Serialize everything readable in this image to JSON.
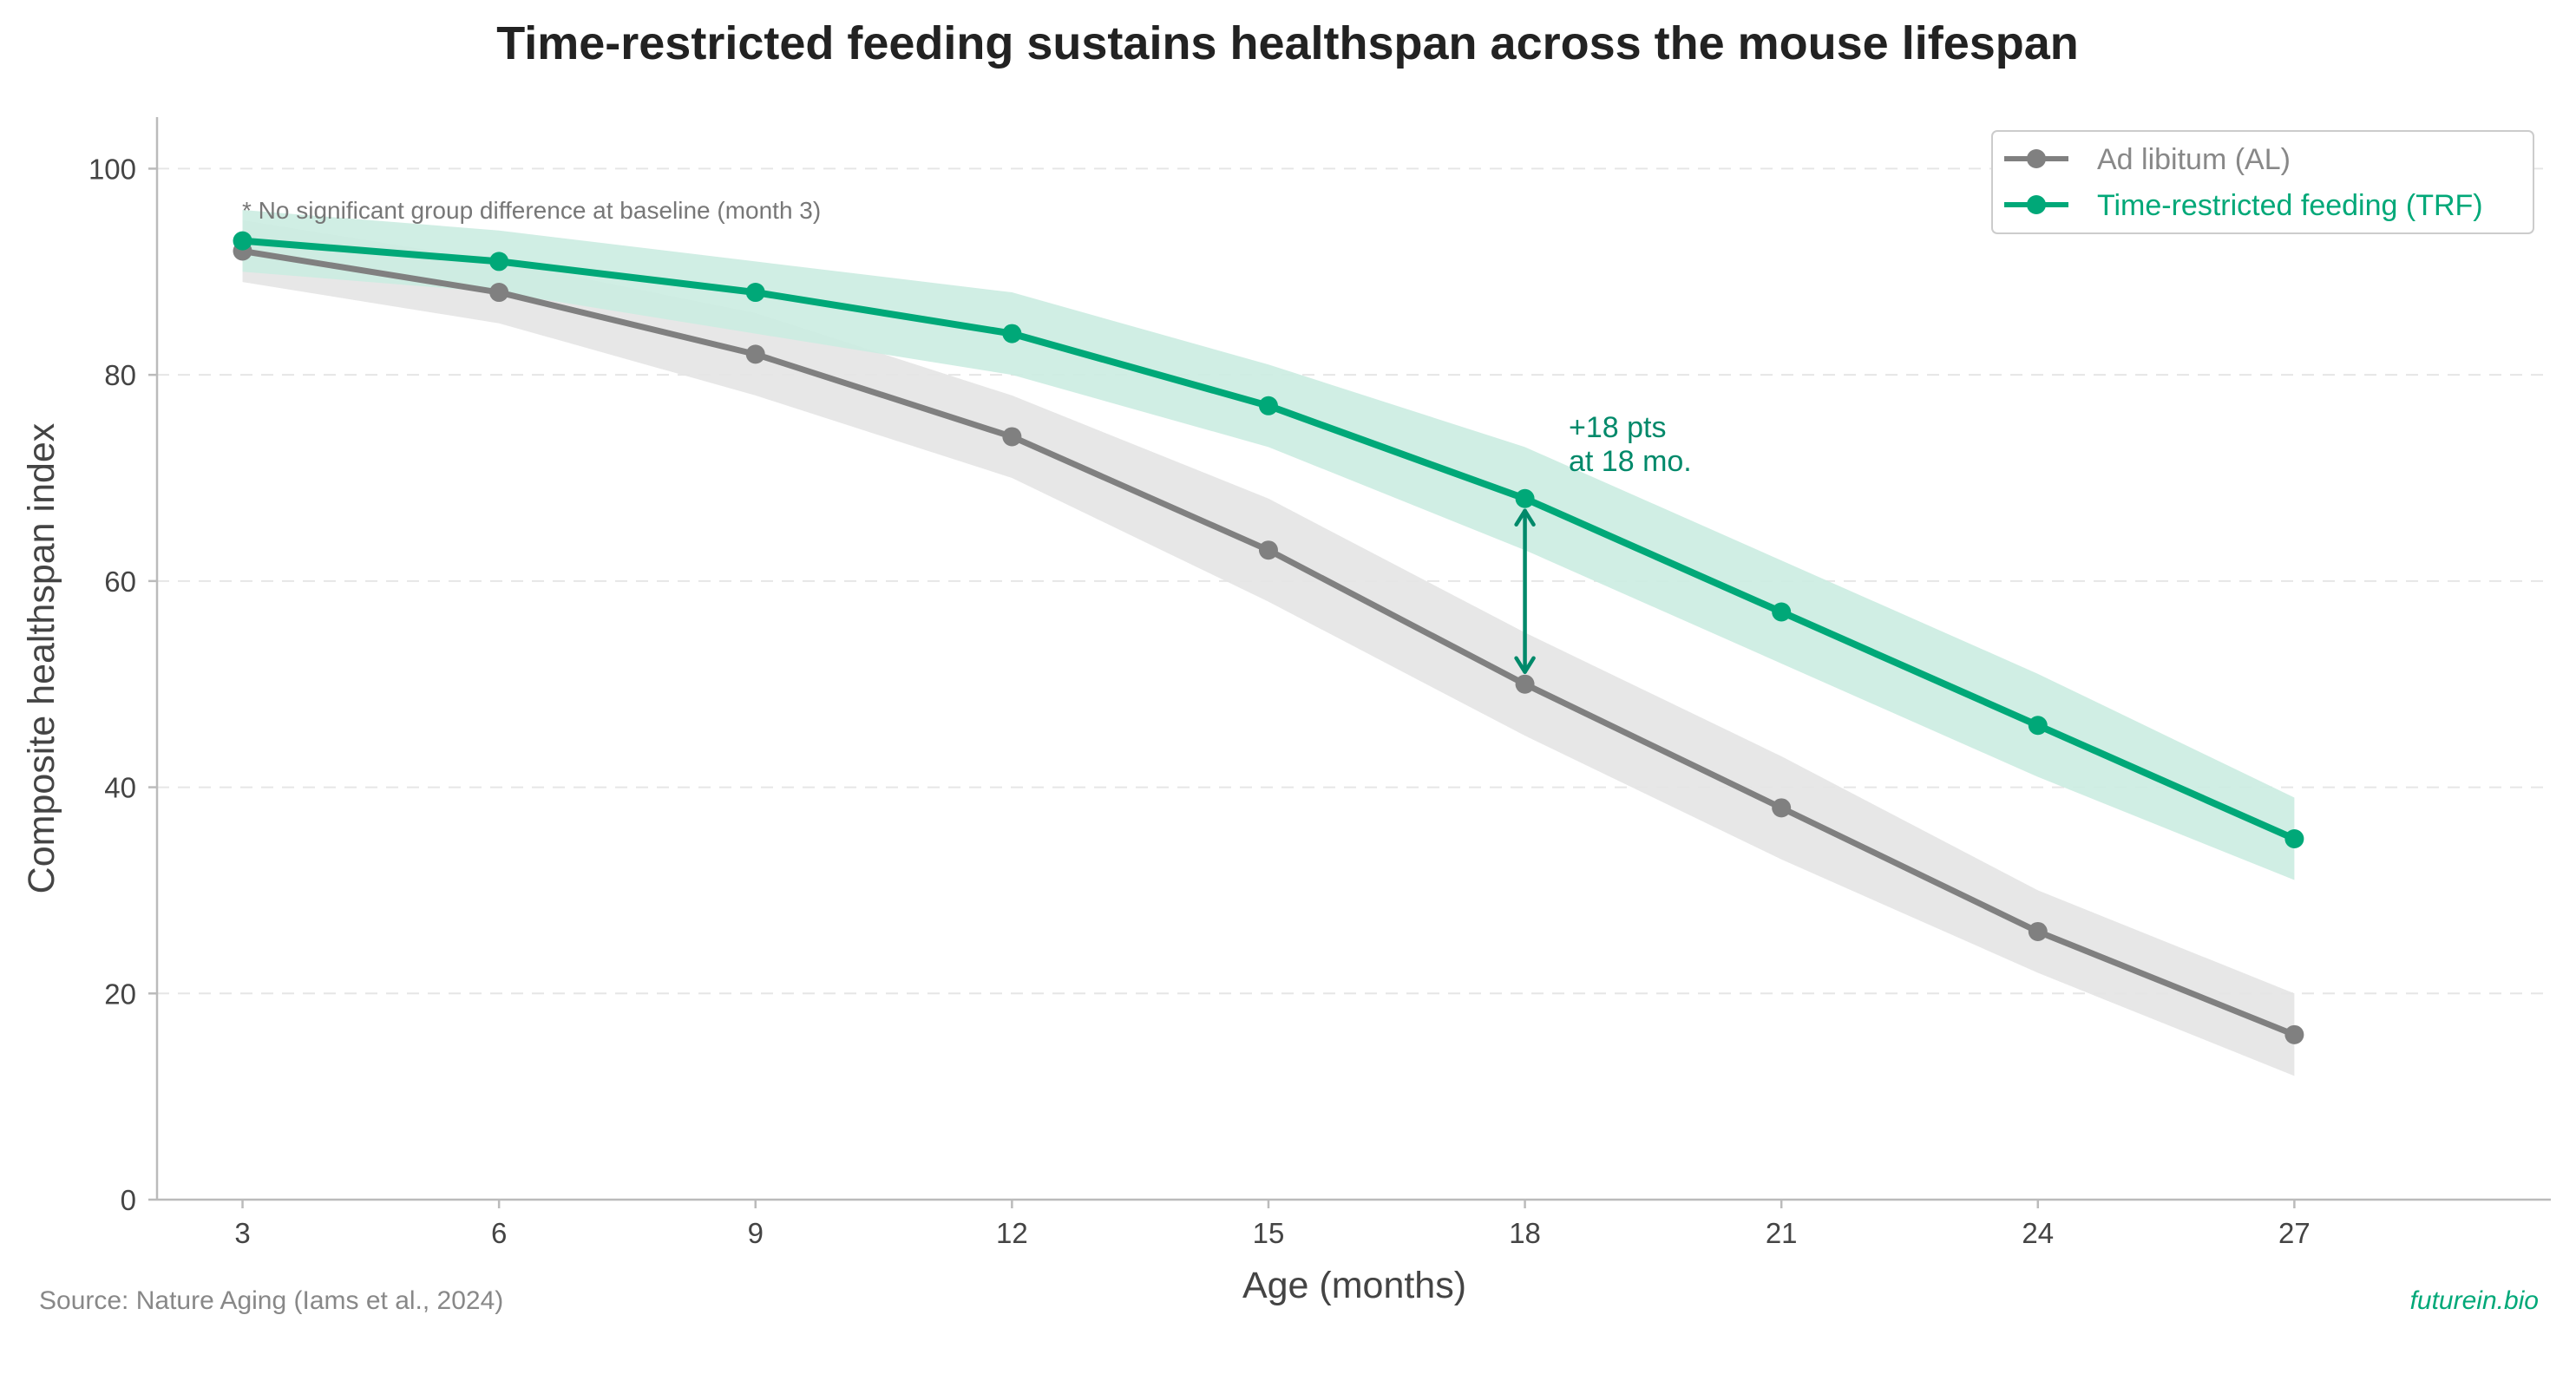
{
  "chart_data": {
    "type": "line",
    "title": "Time-restricted feeding sustains healthspan across the mouse lifespan",
    "xlabel": "Age (months)",
    "ylabel": "Composite healthspan index",
    "x": [
      3,
      6,
      9,
      12,
      15,
      18,
      21,
      24,
      27
    ],
    "xticks": [
      "3",
      "6",
      "9",
      "12",
      "15",
      "18",
      "21",
      "24",
      "27"
    ],
    "xlim": [
      2,
      30
    ],
    "yticks": [
      "0",
      "20",
      "40",
      "60",
      "80",
      "100"
    ],
    "ylim": [
      0,
      105
    ],
    "grid": "y dashed",
    "legend_position": "top-right",
    "series": [
      {
        "name": "Ad libitum (AL)",
        "color": "#808080",
        "band_color": "#e4e4e4",
        "values": [
          92,
          88,
          82,
          74,
          63,
          50,
          38,
          26,
          16
        ],
        "lower": [
          89,
          85,
          78,
          70,
          58,
          45,
          33,
          22,
          12
        ],
        "upper": [
          95,
          91,
          86,
          78,
          68,
          55,
          43,
          30,
          20
        ]
      },
      {
        "name": "Time-restricted feeding (TRF)",
        "color": "#00a878",
        "band_color": "#cbece1",
        "values": [
          93,
          91,
          88,
          84,
          77,
          68,
          57,
          46,
          35
        ],
        "lower": [
          90,
          88,
          84,
          80,
          73,
          63,
          52,
          41,
          31
        ],
        "upper": [
          96,
          94,
          91,
          88,
          81,
          73,
          62,
          51,
          39
        ]
      }
    ],
    "annotations": {
      "baseline_note": "* No significant group difference at baseline (month 3)",
      "gap_line1": "+18 pts",
      "gap_line2": "at 18 mo.",
      "gap_x": 18,
      "gap_from": 50,
      "gap_to": 68,
      "gap_color": "#00896a"
    }
  },
  "footer": {
    "source": "Source: Nature Aging (Iams et al., 2024)",
    "brand": "futurein.bio",
    "brand_color": "#00a878"
  }
}
